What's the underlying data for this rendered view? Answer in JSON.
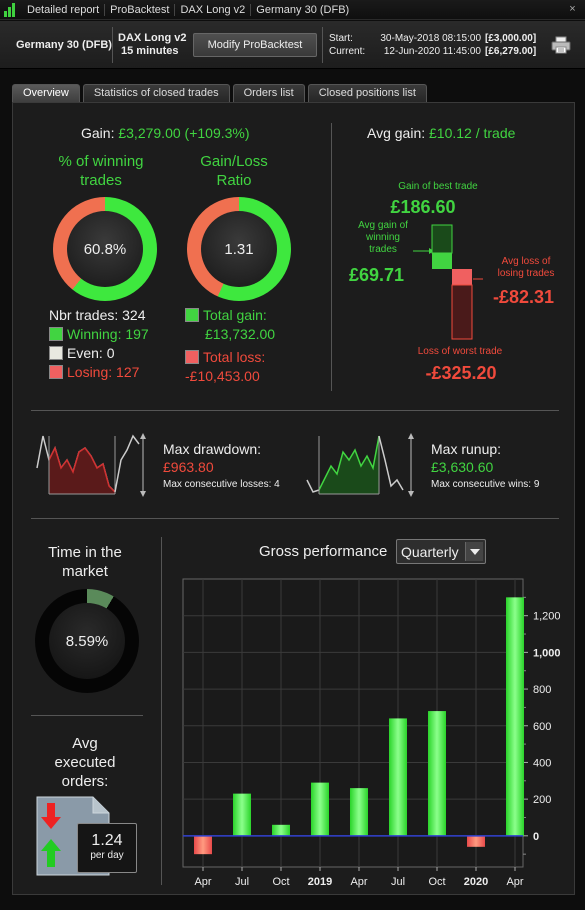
{
  "titlebar": {
    "crumbs": [
      "Detailed report",
      "ProBacktest",
      "DAX Long v2",
      "Germany 30 (DFB)"
    ],
    "close": "×"
  },
  "header": {
    "instrument": "Germany 30 (DFB)",
    "strategy": "DAX Long v2",
    "timeframe": "15 minutes",
    "modify_button": "Modify ProBacktest",
    "start_label": "Start:",
    "start_date": "30-May-2018 08:15:00",
    "start_amount": "[£3,000.00]",
    "current_label": "Current:",
    "current_date": "12-Jun-2020 11:45:00",
    "current_amount": "[£6,279.00]"
  },
  "tabs": [
    "Overview",
    "Statistics of closed trades",
    "Orders list",
    "Closed positions list"
  ],
  "overview": {
    "gain_label": "Gain:",
    "gain_value": "£3,279.00 (+109.3%)",
    "winning_title_1": "% of winning",
    "winning_title_2": "trades",
    "winning_pct": "60.8%",
    "winning_fraction": 0.608,
    "ratio_title_1": "Gain/Loss",
    "ratio_title_2": "Ratio",
    "ratio_value": "1.31",
    "ratio_fraction": 0.567,
    "nbr_trades": "Nbr trades: 324",
    "winning": "Winning: 197",
    "even": "Even: 0",
    "losing": "Losing: 127",
    "total_gain_label": "Total gain:",
    "total_gain": "£13,732.00",
    "total_loss_label": "Total loss:",
    "total_loss": "-£10,453.00",
    "avg_gain_label": "Avg gain:",
    "avg_gain_value": "£10.12 / trade",
    "gain_best_label": "Gain of best trade",
    "gain_best": "£186.60",
    "avg_gain_win_label_1": "Avg gain of",
    "avg_gain_win_label_2": "winning",
    "avg_gain_win_label_3": "trades",
    "avg_gain_win": "£69.71",
    "avg_loss_label_1": "Avg loss of",
    "avg_loss_label_2": "losing trades",
    "avg_loss": "-£82.31",
    "loss_worst_label": "Loss of worst trade",
    "loss_worst": "-£325.20",
    "max_drawdown_label": "Max drawdown:",
    "max_drawdown": "£963.80",
    "max_cons_losses": "Max consecutive losses: 4",
    "max_runup_label": "Max runup:",
    "max_runup": "£3,630.60",
    "max_cons_wins": "Max consecutive wins: 9",
    "time_market_1": "Time in the",
    "time_market_2": "market",
    "time_market": "8.59%",
    "time_market_fraction": 0.0859,
    "avg_exec_1": "Avg",
    "avg_exec_2": "executed",
    "avg_exec_3": "orders:",
    "avg_exec_value": "1.24",
    "avg_exec_unit": "per day",
    "gross_title": "Gross performance",
    "period_select": "Quarterly"
  },
  "colors": {
    "green": "#41d441",
    "red": "#f04a3c",
    "panel": "#1c1c1c"
  },
  "chart_data": {
    "type": "bar",
    "title": "Gross performance",
    "categories": [
      "Apr",
      "Jul",
      "Oct",
      "2019",
      "Apr",
      "Jul",
      "Oct",
      "2020",
      "Apr"
    ],
    "values": [
      -100,
      230,
      60,
      290,
      260,
      640,
      680,
      -60,
      1300
    ],
    "yticks": [
      "0",
      "200",
      "400",
      "600",
      "800",
      "1,000",
      "1,200"
    ],
    "ylim": [
      -170,
      1400
    ],
    "grid": true
  }
}
